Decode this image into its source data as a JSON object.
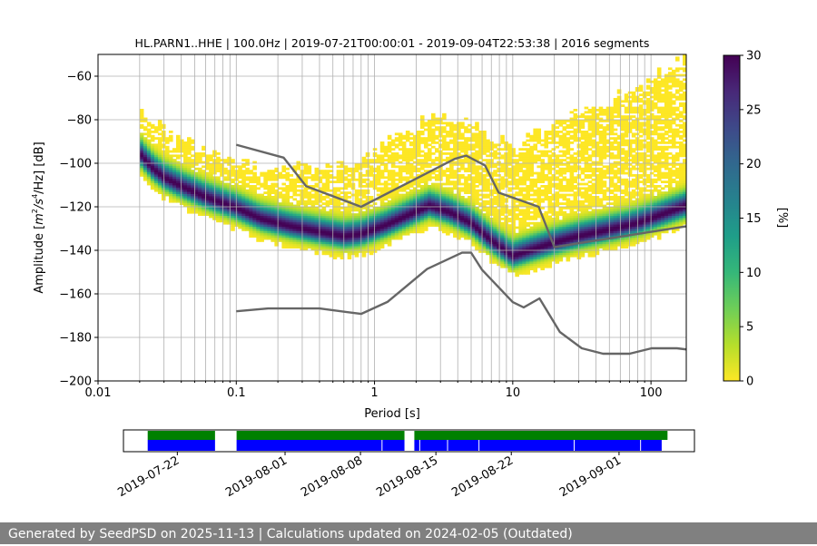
{
  "chart_data": {
    "type": "heatmap",
    "title": "HL.PARN1..HHE | 100.0Hz | 2019-07-21T00:00:01 - 2019-09-04T22:53:38 | 2016 segments",
    "xlabel": "Period [s]",
    "ylabel_parts": [
      "Amplitude [",
      "m",
      "2",
      "/",
      "s",
      "4",
      "/Hz] [dB]"
    ],
    "x_scale": "log",
    "xlim": [
      0.01,
      180
    ],
    "ylim": [
      -200,
      -50
    ],
    "x_ticks": [
      {
        "value": 0.01,
        "label": "0.01"
      },
      {
        "value": 0.1,
        "label": "0.1"
      },
      {
        "value": 1,
        "label": "1"
      },
      {
        "value": 10,
        "label": "10"
      },
      {
        "value": 100,
        "label": "100"
      }
    ],
    "y_ticks": [
      {
        "value": -60,
        "label": "−60"
      },
      {
        "value": -80,
        "label": "−80"
      },
      {
        "value": -100,
        "label": "−100"
      },
      {
        "value": -120,
        "label": "−120"
      },
      {
        "value": -140,
        "label": "−140"
      },
      {
        "value": -160,
        "label": "−160"
      },
      {
        "value": -180,
        "label": "−180"
      },
      {
        "value": -200,
        "label": "−200"
      }
    ],
    "grid": true,
    "data_period_range": [
      0.02,
      180
    ],
    "mode_curve": {
      "period": [
        0.02,
        0.025,
        0.03,
        0.04,
        0.06,
        0.1,
        0.15,
        0.25,
        0.4,
        0.6,
        0.8,
        1.2,
        1.8,
        2.5,
        3.5,
        5,
        7,
        10,
        14,
        20,
        30,
        50,
        80,
        120,
        180
      ],
      "db": [
        -96,
        -103,
        -107,
        -111,
        -116,
        -121,
        -126,
        -129.5,
        -132,
        -134,
        -133,
        -129,
        -124,
        -120,
        -123,
        -128,
        -136,
        -143,
        -140,
        -137,
        -134,
        -131,
        -128,
        -124,
        -120
      ]
    },
    "noise_models": [
      {
        "name": "NHNM",
        "period": [
          0.1,
          0.22,
          0.32,
          0.8,
          3.8,
          4.6,
          6.3,
          7.9,
          15.4,
          20,
          354.8
        ],
        "db": [
          -91.5,
          -97.4,
          -110.5,
          -120,
          -98,
          -96.5,
          -101,
          -113.5,
          -120,
          -138.5,
          -126
        ]
      },
      {
        "name": "NLNM",
        "period": [
          0.1,
          0.17,
          0.4,
          0.8,
          1.24,
          2.4,
          4.3,
          5,
          6,
          10,
          12,
          15.6,
          21.9,
          31.6,
          45,
          70,
          101,
          154,
          328
        ],
        "db": [
          -168,
          -166.7,
          -166.7,
          -169.2,
          -163.7,
          -148.6,
          -141.1,
          -141.1,
          -149,
          -163.8,
          -166.2,
          -162.1,
          -177.5,
          -185,
          -187.5,
          -187.5,
          -185,
          -185,
          -187.5
        ]
      }
    ],
    "colorbar": {
      "label": "[%]",
      "range": [
        0,
        30
      ],
      "ticks": [
        {
          "value": 0,
          "label": "0"
        },
        {
          "value": 5,
          "label": "5"
        },
        {
          "value": 10,
          "label": "10"
        },
        {
          "value": 15,
          "label": "15"
        },
        {
          "value": 20,
          "label": "20"
        },
        {
          "value": 25,
          "label": "25"
        },
        {
          "value": 30,
          "label": "30"
        }
      ],
      "colormap": [
        "#fde725",
        "#b5de2b",
        "#6ece58",
        "#35b779",
        "#1f9e89",
        "#26828e",
        "#31688e",
        "#3e4989",
        "#482878",
        "#440154"
      ]
    },
    "timeline": {
      "date_range": [
        "2019-07-17",
        "2019-09-08"
      ],
      "ticks": [
        "2019-07-22",
        "2019-08-01",
        "2019-08-08",
        "2019-08-15",
        "2019-08-22",
        "2019-09-01"
      ],
      "available_color": "#008000",
      "used_color": "#0000ff",
      "available_spans": [
        [
          "2019-07-19T06:00",
          "2019-07-25T12:00"
        ],
        [
          "2019-07-27T12:00",
          "2019-08-12T02:00"
        ],
        [
          "2019-08-13T00:00",
          "2019-09-05T12:00"
        ]
      ],
      "used_spans": [
        [
          "2019-07-19T06:00",
          "2019-07-25T12:00"
        ],
        [
          "2019-07-27T12:00",
          "2019-08-12T02:00"
        ],
        [
          "2019-08-13T00:00",
          "2019-09-04T23:00"
        ]
      ],
      "gaps": [
        "2019-08-10T00:00",
        "2019-08-13T12:00",
        "2019-08-16T02:00",
        "2019-08-19T00:00",
        "2019-08-27T20:00",
        "2019-09-03T00:00"
      ]
    }
  },
  "footer": {
    "text": "Generated by SeedPSD on 2025-11-13 | Calculations updated on 2024-02-05 (Outdated)"
  }
}
